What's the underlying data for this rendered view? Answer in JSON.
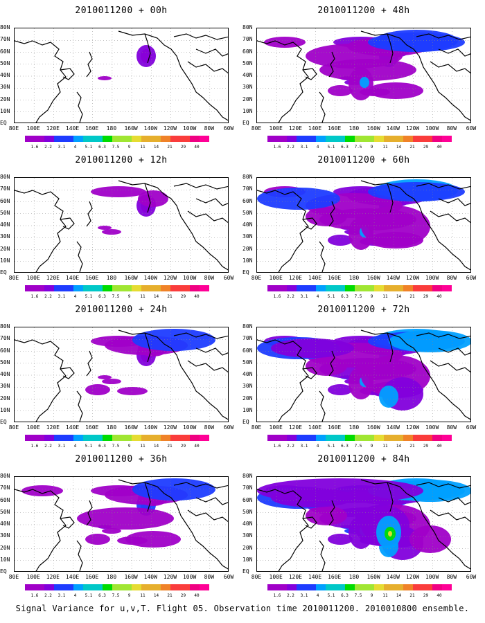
{
  "panels": [
    {
      "title": "2010011200 + 00h",
      "intensity": 0
    },
    {
      "title": "2010011200 + 48h",
      "intensity": 4
    },
    {
      "title": "2010011200 + 12h",
      "intensity": 1
    },
    {
      "title": "2010011200 + 60h",
      "intensity": 5
    },
    {
      "title": "2010011200 + 24h",
      "intensity": 2
    },
    {
      "title": "2010011200 + 72h",
      "intensity": 6
    },
    {
      "title": "2010011200 + 36h",
      "intensity": 3
    },
    {
      "title": "2010011200 + 84h",
      "intensity": 7
    }
  ],
  "lat_labels": [
    "80N",
    "70N",
    "60N",
    "50N",
    "40N",
    "30N",
    "20N",
    "10N",
    "EQ"
  ],
  "lon_labels": [
    "80E",
    "100E",
    "120E",
    "140E",
    "160E",
    "180",
    "160W",
    "140W",
    "120W",
    "100W",
    "80W",
    "60W"
  ],
  "colorbar": {
    "labels": [
      "1.6",
      "2.2",
      "3.1",
      "4",
      "5.1",
      "6.3",
      "7.5",
      "9",
      "11",
      "14",
      "21",
      "29",
      "40"
    ],
    "colors": [
      "#a000c8",
      "#8200dc",
      "#1e3cff",
      "#00a0ff",
      "#00c8c8",
      "#00dc00",
      "#a0e632",
      "#e6dc32",
      "#e6af2d",
      "#f08228",
      "#fa3c3c",
      "#f00082",
      "#ff0096"
    ]
  },
  "caption": "Signal Variance for u,v,T. Flight 05. Observation time 2010011200. 2010010800 ensemble."
}
